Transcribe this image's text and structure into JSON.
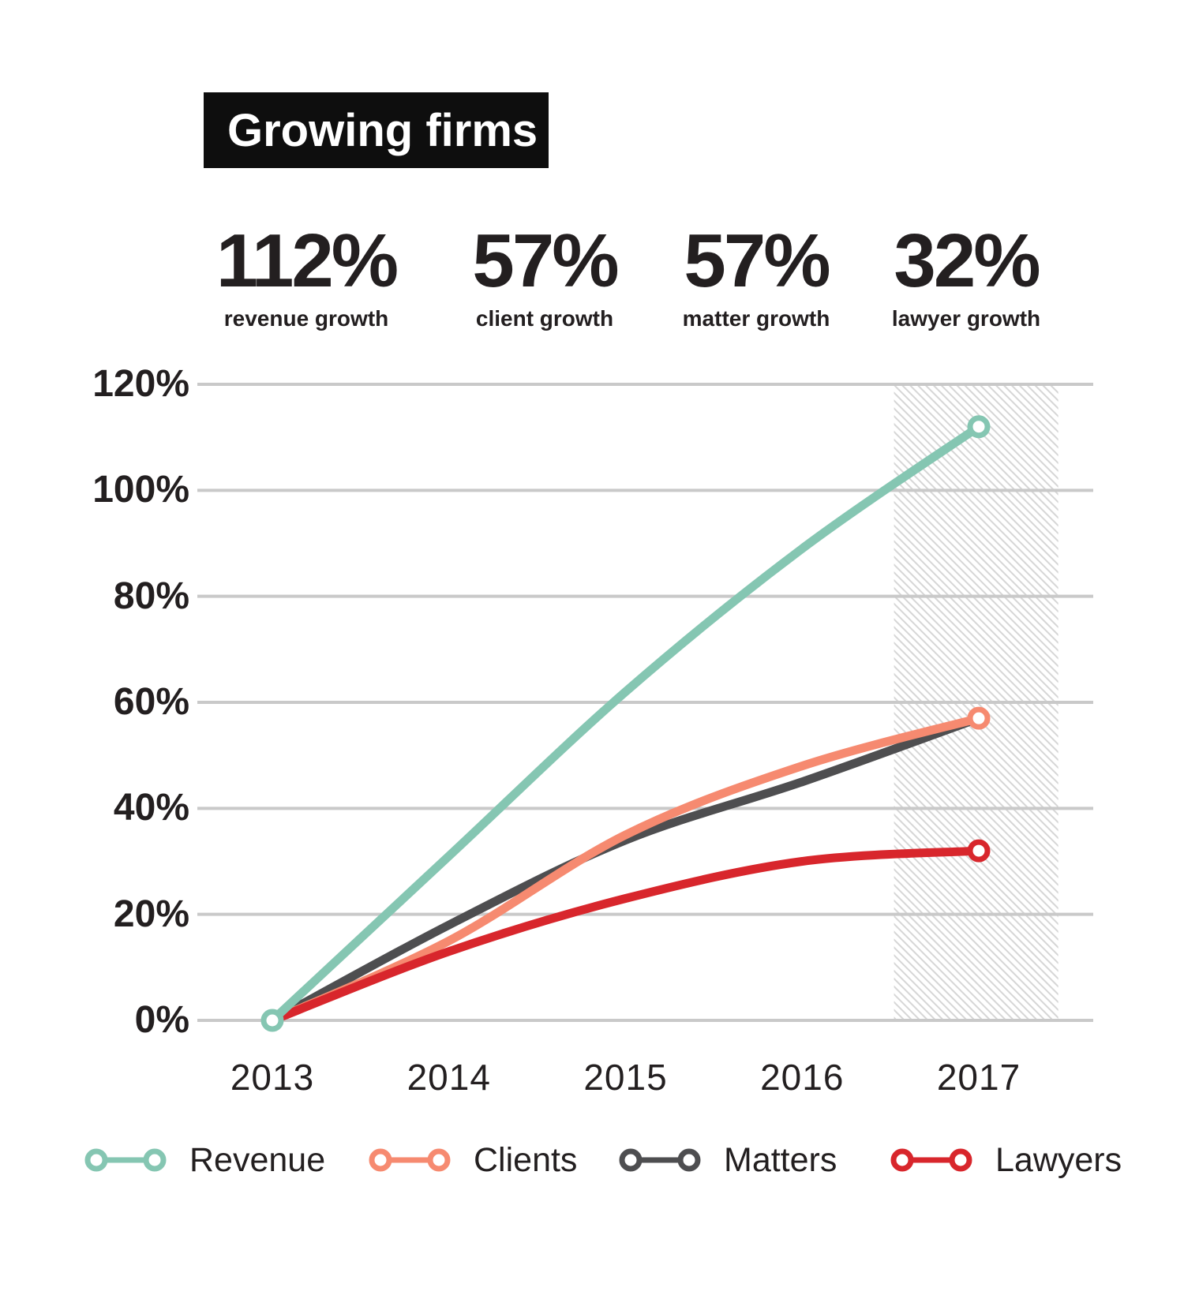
{
  "title": "Growing firms",
  "stats": [
    {
      "value": "112%",
      "label": "revenue growth"
    },
    {
      "value": "57%",
      "label": "client growth"
    },
    {
      "value": "57%",
      "label": "matter growth"
    },
    {
      "value": "32%",
      "label": "lawyer growth"
    }
  ],
  "chart_data": {
    "type": "line",
    "title": "Growing firms",
    "x": [
      2013,
      2014,
      2015,
      2016,
      2017
    ],
    "x_tick_labels": [
      "2013",
      "2014",
      "2015",
      "2016",
      "2017"
    ],
    "y_ticks": [
      "0%",
      "20%",
      "40%",
      "60%",
      "80%",
      "100%",
      "120%"
    ],
    "y_tick_values": [
      0,
      20,
      40,
      60,
      80,
      100,
      120
    ],
    "ylim": [
      0,
      120
    ],
    "grid": "horizontal",
    "grid_color": "#C9C9C9",
    "hatch_band": {
      "x_range": [
        2016.52,
        2017.45
      ],
      "style": "diagonal-hatch",
      "color": "#D6D6D6"
    },
    "series": [
      {
        "name": "Revenue",
        "color": "#85C6B2",
        "values": [
          0,
          31,
          62,
          89,
          112
        ],
        "markers": [
          2013,
          2017
        ]
      },
      {
        "name": "Clients",
        "color": "#F68A70",
        "values": [
          0,
          15,
          35,
          48,
          57
        ],
        "markers": [
          2017
        ]
      },
      {
        "name": "Matters",
        "color": "#4E4E50",
        "values": [
          0,
          18,
          34,
          45,
          57
        ],
        "markers": []
      },
      {
        "name": "Lawyers",
        "color": "#D8262C",
        "values": [
          0,
          13,
          23,
          30,
          32
        ],
        "markers": [
          2017
        ]
      }
    ],
    "legend": [
      "Revenue",
      "Clients",
      "Matters",
      "Lawyers"
    ],
    "legend_position": "bottom",
    "text_color": "#231F20"
  }
}
